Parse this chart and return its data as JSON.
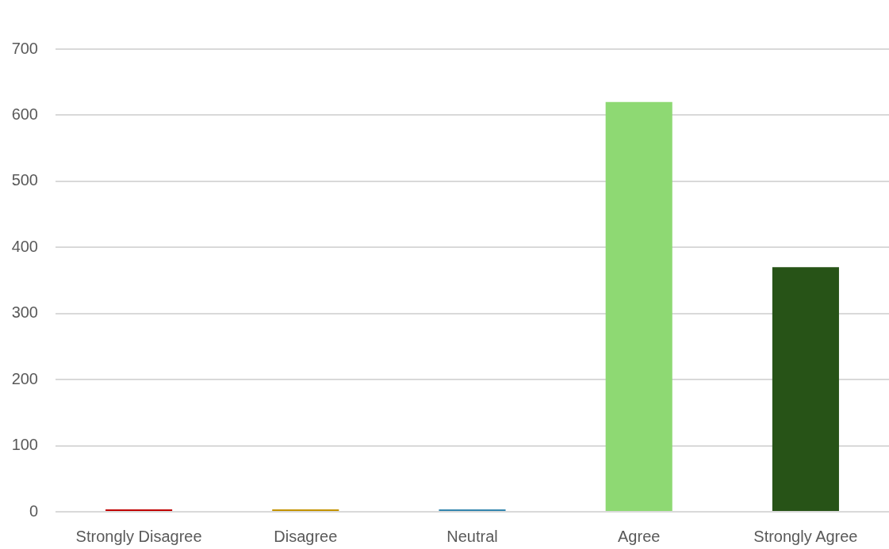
{
  "chart_data": {
    "type": "bar",
    "categories": [
      "Strongly Disagree",
      "Disagree",
      "Neutral",
      "Agree",
      "Strongly Agree"
    ],
    "values": [
      0,
      0,
      0,
      620,
      370
    ],
    "colors": [
      "#c00000",
      "#c39300",
      "#3385ae",
      "#8ed973",
      "#275317"
    ],
    "ylim": [
      0,
      700
    ],
    "yticks": [
      0,
      100,
      200,
      300,
      400,
      500,
      600,
      700
    ],
    "grid": "y"
  }
}
